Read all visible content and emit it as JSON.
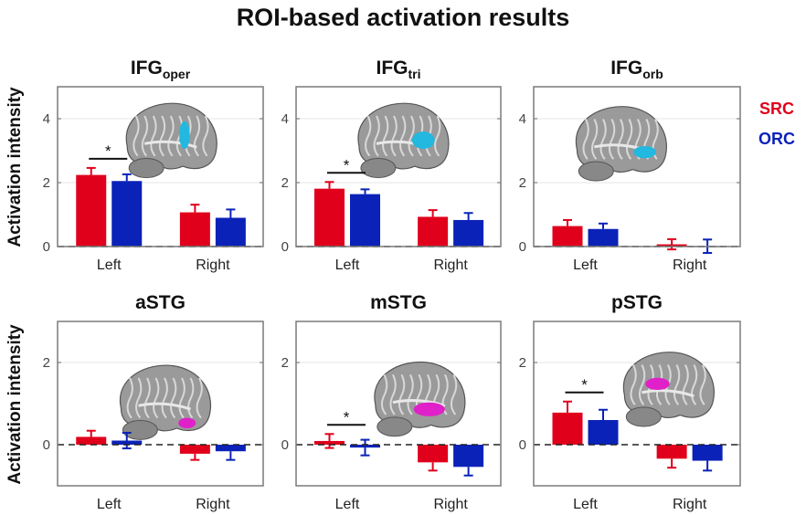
{
  "chart_data": {
    "type": "bar",
    "title": "ROI-based activation results",
    "ylabel": "Activation intensity",
    "legend": {
      "placement": "right",
      "entries": [
        {
          "name": "SRC",
          "color": "#e0001b"
        },
        {
          "name": "ORC",
          "color": "#0a22b8"
        }
      ]
    },
    "categories": [
      "Left",
      "Right"
    ],
    "panels": [
      {
        "name": "IFG",
        "subscript": "oper",
        "roi_color": "#22b8e0",
        "ylim": [
          0,
          5
        ],
        "yticks": [
          0,
          2,
          4
        ],
        "grid": true,
        "series": [
          {
            "name": "SRC",
            "values": [
              2.24,
              1.07
            ],
            "errors": [
              0.22,
              0.24
            ]
          },
          {
            "name": "ORC",
            "values": [
              2.05,
              0.9
            ],
            "errors": [
              0.21,
              0.26
            ]
          }
        ],
        "significance": [
          {
            "category": "Left",
            "label": "*"
          }
        ]
      },
      {
        "name": "IFG",
        "subscript": "tri",
        "roi_color": "#22b8e0",
        "ylim": [
          0,
          5
        ],
        "yticks": [
          0,
          2,
          4
        ],
        "grid": true,
        "series": [
          {
            "name": "SRC",
            "values": [
              1.81,
              0.93
            ],
            "errors": [
              0.21,
              0.21
            ]
          },
          {
            "name": "ORC",
            "values": [
              1.64,
              0.83
            ],
            "errors": [
              0.15,
              0.22
            ]
          }
        ],
        "significance": [
          {
            "category": "Left",
            "label": "*"
          }
        ]
      },
      {
        "name": "IFG",
        "subscript": "orb",
        "roi_color": "#22b8e0",
        "ylim": [
          0,
          5
        ],
        "yticks": [
          0,
          2,
          4
        ],
        "grid": true,
        "series": [
          {
            "name": "SRC",
            "values": [
              0.64,
              0.07
            ],
            "errors": [
              0.19,
              0.16
            ]
          },
          {
            "name": "ORC",
            "values": [
              0.55,
              0.01
            ],
            "errors": [
              0.17,
              0.21
            ]
          }
        ],
        "significance": []
      },
      {
        "name": "aSTG",
        "subscript": "",
        "roi_color": "#e020c8",
        "ylim": [
          -1,
          3
        ],
        "yticks": [
          0,
          2
        ],
        "grid": true,
        "series": [
          {
            "name": "SRC",
            "values": [
              0.19,
              -0.22
            ],
            "errors": [
              0.15,
              0.15
            ]
          },
          {
            "name": "ORC",
            "values": [
              0.1,
              -0.16
            ],
            "errors": [
              0.19,
              0.21
            ]
          }
        ],
        "significance": []
      },
      {
        "name": "mSTG",
        "subscript": "",
        "roi_color": "#e020c8",
        "ylim": [
          -1,
          3
        ],
        "yticks": [
          0,
          2
        ],
        "grid": true,
        "series": [
          {
            "name": "SRC",
            "values": [
              0.09,
              -0.43
            ],
            "errors": [
              0.17,
              0.2
            ]
          },
          {
            "name": "ORC",
            "values": [
              -0.07,
              -0.54
            ],
            "errors": [
              0.19,
              0.21
            ]
          }
        ],
        "significance": [
          {
            "category": "Left",
            "label": "*"
          }
        ]
      },
      {
        "name": "pSTG",
        "subscript": "",
        "roi_color": "#e020c8",
        "ylim": [
          -1,
          3
        ],
        "yticks": [
          0,
          2
        ],
        "grid": true,
        "series": [
          {
            "name": "SRC",
            "values": [
              0.78,
              -0.34
            ],
            "errors": [
              0.27,
              0.22
            ]
          },
          {
            "name": "ORC",
            "values": [
              0.6,
              -0.39
            ],
            "errors": [
              0.25,
              0.24
            ]
          }
        ],
        "significance": [
          {
            "category": "Left",
            "label": "*"
          }
        ]
      }
    ]
  }
}
